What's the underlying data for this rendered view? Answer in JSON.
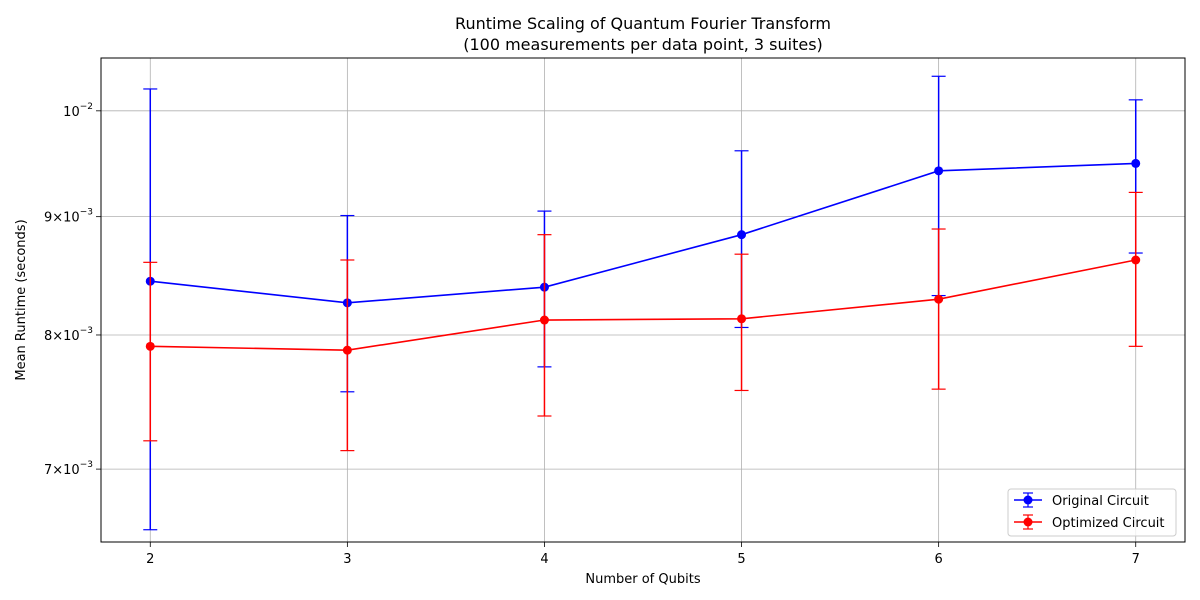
{
  "chart_data": {
    "type": "line",
    "title": "Runtime Scaling of Quantum Fourier Transform",
    "subtitle": "(100 measurements per data point, 3 suites)",
    "xlabel": "Number of Qubits",
    "ylabel": "Mean Runtime (seconds)",
    "x": [
      2,
      3,
      4,
      5,
      6,
      7
    ],
    "x_ticks": [
      "2",
      "3",
      "4",
      "5",
      "6",
      "7"
    ],
    "xlim": [
      1.75,
      7.25
    ],
    "y_scale": "log",
    "ylim": [
      0.00651,
      0.01054
    ],
    "y_ticks": [
      {
        "value": 0.007,
        "base": "7",
        "times": "×",
        "exp_base": "10",
        "exp": "−3"
      },
      {
        "value": 0.008,
        "base": "8",
        "times": "×",
        "exp_base": "10",
        "exp": "−3"
      },
      {
        "value": 0.009,
        "base": "9",
        "times": "×",
        "exp_base": "10",
        "exp": "−3"
      },
      {
        "value": 0.01,
        "base": "",
        "times": "",
        "exp_base": "10",
        "exp": "−2"
      }
    ],
    "grid": true,
    "legend_position": "lower-right",
    "series": [
      {
        "name": "Original Circuit",
        "color": "#0000ff",
        "values": [
          0.00844,
          0.00826,
          0.00839,
          0.00884,
          0.00942,
          0.00949
        ],
        "err_lower": [
          0.00659,
          0.00756,
          0.00775,
          0.00806,
          0.00832,
          0.00868
        ],
        "err_upper": [
          0.01022,
          0.00901,
          0.00905,
          0.00961,
          0.01035,
          0.01011
        ]
      },
      {
        "name": "Optimized Circuit",
        "color": "#ff0000",
        "values": [
          0.00791,
          0.00788,
          0.00812,
          0.00813,
          0.00829,
          0.00862
        ],
        "err_lower": [
          0.0072,
          0.00713,
          0.00738,
          0.00757,
          0.00758,
          0.00791
        ],
        "err_upper": [
          0.0086,
          0.00862,
          0.00884,
          0.00867,
          0.00889,
          0.00922
        ]
      }
    ]
  }
}
